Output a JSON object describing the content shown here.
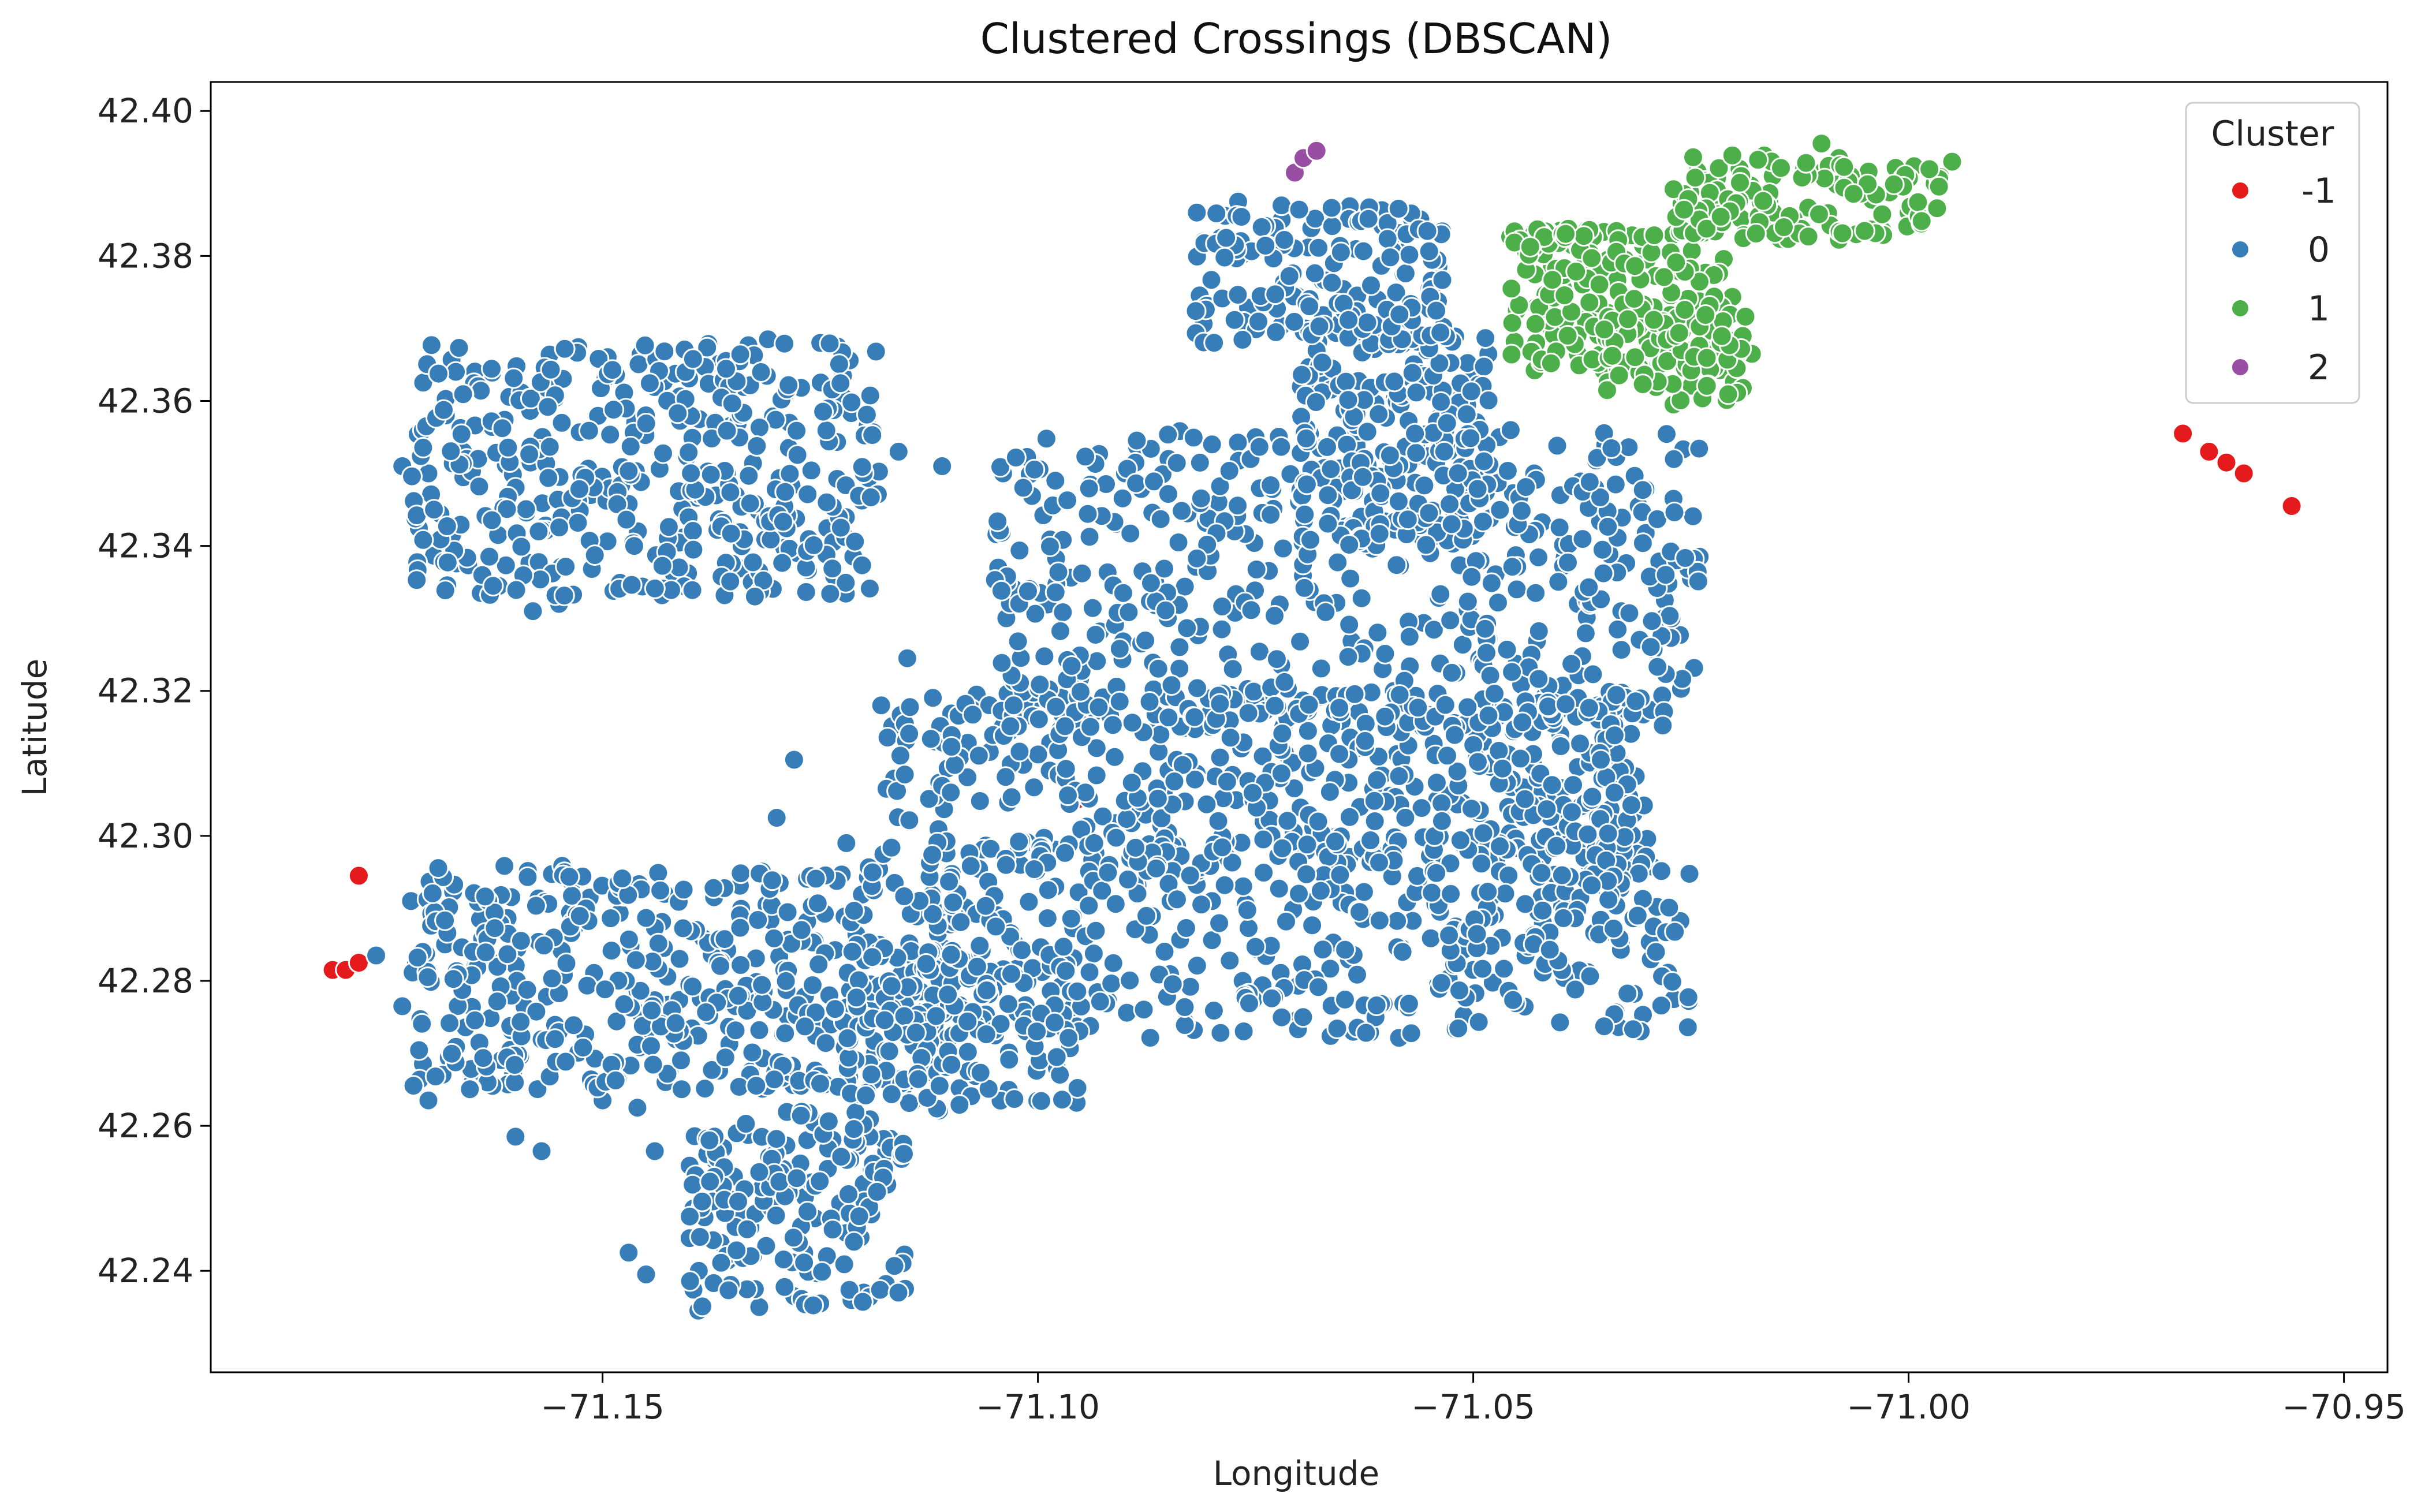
{
  "chart_data": {
    "type": "scatter",
    "title": "Clustered Crossings (DBSCAN)",
    "xlabel": "Longitude",
    "ylabel": "Latitude",
    "xlim": [
      -71.195,
      -70.945
    ],
    "ylim": [
      42.226,
      42.404
    ],
    "xticks": [
      {
        "value": -71.15,
        "label": "−71.15"
      },
      {
        "value": -71.1,
        "label": "−71.10"
      },
      {
        "value": -71.05,
        "label": "−71.05"
      },
      {
        "value": -71.0,
        "label": "−71.00"
      },
      {
        "value": -70.95,
        "label": "−70.95"
      }
    ],
    "yticks": [
      {
        "value": 42.24,
        "label": "42.24"
      },
      {
        "value": 42.26,
        "label": "42.26"
      },
      {
        "value": 42.28,
        "label": "42.28"
      },
      {
        "value": 42.3,
        "label": "42.30"
      },
      {
        "value": 42.32,
        "label": "42.32"
      },
      {
        "value": 42.34,
        "label": "42.34"
      },
      {
        "value": 42.36,
        "label": "42.36"
      },
      {
        "value": 42.38,
        "label": "42.38"
      },
      {
        "value": 42.4,
        "label": "42.40"
      }
    ],
    "grid": false,
    "legend": {
      "title": "Cluster",
      "position": "top-right"
    },
    "series": [
      {
        "name": "-1",
        "color": "#e41a1c",
        "points": [
          [
            -71.181,
            42.2815
          ],
          [
            -71.1795,
            42.2815
          ],
          [
            -71.178,
            42.2825
          ],
          [
            -71.178,
            42.2945
          ],
          [
            -71.0955,
            42.305
          ],
          [
            -70.9685,
            42.3555
          ],
          [
            -70.9655,
            42.353
          ],
          [
            -70.9635,
            42.3515
          ],
          [
            -70.9615,
            42.35
          ],
          [
            -70.956,
            42.3455
          ]
        ]
      },
      {
        "name": "0",
        "color": "#377eb8",
        "regions": [
          [
            -71.172,
            -71.118,
            42.333,
            42.368,
            420
          ],
          [
            -71.172,
            -71.108,
            42.265,
            42.296,
            480
          ],
          [
            -71.14,
            -71.115,
            42.235,
            42.262,
            170
          ],
          [
            -71.118,
            -71.03,
            42.296,
            42.32,
            420
          ],
          [
            -71.11,
            -71.025,
            42.272,
            42.3,
            380
          ],
          [
            -71.105,
            -71.024,
            42.315,
            42.356,
            480
          ],
          [
            -71.07,
            -71.048,
            42.34,
            42.37,
            220
          ],
          [
            -71.082,
            -71.053,
            42.368,
            42.387,
            160
          ],
          [
            -71.122,
            -71.095,
            42.262,
            42.285,
            150
          ],
          [
            -71.055,
            -71.033,
            42.284,
            42.32,
            120
          ]
        ],
        "points": [
          [
            -71.173,
            42.351
          ],
          [
            -71.17,
            42.35
          ],
          [
            -71.168,
            42.358
          ],
          [
            -71.166,
            42.353
          ],
          [
            -71.164,
            42.3335
          ],
          [
            -71.162,
            42.3415
          ],
          [
            -71.158,
            42.331
          ],
          [
            -71.155,
            42.332
          ],
          [
            -71.131,
            42.3685
          ],
          [
            -71.125,
            42.368
          ],
          [
            -71.123,
            42.3675
          ],
          [
            -71.116,
            42.353
          ],
          [
            -71.111,
            42.351
          ],
          [
            -71.104,
            42.35
          ],
          [
            -71.098,
            42.349
          ],
          [
            -71.09,
            42.35
          ],
          [
            -71.085,
            42.352
          ],
          [
            -71.08,
            42.354
          ],
          [
            -71.075,
            42.355
          ],
          [
            -71.139,
            42.2345
          ],
          [
            -71.132,
            42.235
          ],
          [
            -71.128,
            42.2365
          ],
          [
            -71.125,
            42.2355
          ],
          [
            -71.12,
            42.237
          ],
          [
            -71.145,
            42.2395
          ],
          [
            -71.147,
            42.2425
          ],
          [
            -71.14,
            42.2445
          ],
          [
            -71.121,
            42.2485
          ],
          [
            -71.12,
            42.252
          ],
          [
            -71.172,
            42.291
          ],
          [
            -71.176,
            42.2835
          ],
          [
            -71.173,
            42.2765
          ],
          [
            -71.17,
            42.2635
          ],
          [
            -71.165,
            42.2665
          ],
          [
            -71.16,
            42.2585
          ],
          [
            -71.157,
            42.2565
          ],
          [
            -71.15,
            42.2635
          ],
          [
            -71.146,
            42.2625
          ],
          [
            -71.144,
            42.2565
          ],
          [
            -71.14,
            42.2545
          ],
          [
            -71.137,
            42.2525
          ],
          [
            -71.115,
            42.3245
          ],
          [
            -71.112,
            42.319
          ],
          [
            -71.118,
            42.318
          ],
          [
            -71.128,
            42.3105
          ],
          [
            -71.13,
            42.3025
          ],
          [
            -71.122,
            42.299
          ],
          [
            -71.102,
            42.296
          ],
          [
            -71.098,
            42.293
          ],
          [
            -71.09,
            42.305
          ],
          [
            -71.085,
            42.309
          ],
          [
            -71.08,
            42.291
          ],
          [
            -71.063,
            42.304
          ],
          [
            -71.048,
            42.3095
          ],
          [
            -71.046,
            42.304
          ],
          [
            -71.04,
            42.314
          ],
          [
            -71.038,
            42.3095
          ],
          [
            -71.034,
            42.3135
          ],
          [
            -71.042,
            42.288
          ],
          [
            -71.041,
            42.292
          ],
          [
            -71.044,
            42.2835
          ],
          [
            -71.05,
            42.2815
          ],
          [
            -71.048,
            42.2915
          ],
          [
            -71.052,
            42.2875
          ],
          [
            -71.052,
            42.343
          ],
          [
            -71.049,
            42.349
          ],
          [
            -71.047,
            42.355
          ],
          [
            -71.043,
            42.35
          ],
          [
            -71.04,
            42.347
          ],
          [
            -71.036,
            42.348
          ],
          [
            -71.031,
            42.3455
          ],
          [
            -71.027,
            42.3465
          ],
          [
            -71.025,
            42.3355
          ],
          [
            -71.024,
            42.3385
          ],
          [
            -71.028,
            42.3325
          ],
          [
            -71.033,
            42.331
          ],
          [
            -71.038,
            42.332
          ],
          [
            -71.045,
            42.334
          ],
          [
            -71.079,
            42.3825
          ],
          [
            -71.081,
            42.382
          ],
          [
            -71.077,
            42.3875
          ],
          [
            -71.072,
            42.385
          ],
          [
            -71.066,
            42.379
          ],
          [
            -71.058,
            42.3775
          ],
          [
            -71.054,
            42.3785
          ],
          [
            -71.061,
            42.374
          ],
          [
            -71.065,
            42.3705
          ],
          [
            -71.068,
            42.3685
          ],
          [
            -71.057,
            42.3685
          ]
        ]
      },
      {
        "name": "1",
        "color": "#4daf4a",
        "regions": [
          [
            -71.046,
            -71.02,
            42.364,
            42.384,
            200
          ],
          [
            -71.027,
            -70.996,
            42.382,
            42.394,
            120
          ],
          [
            -71.035,
            -71.018,
            42.36,
            42.372,
            60
          ]
        ],
        "points": [
          [
            -71.04,
            42.3835
          ],
          [
            -71.045,
            42.3725
          ],
          [
            -71.043,
            42.3705
          ],
          [
            -71.038,
            42.3665
          ],
          [
            -71.027,
            42.3595
          ],
          [
            -71.026,
            42.3615
          ],
          [
            -71.02,
            42.3635
          ],
          [
            -71.018,
            42.3665
          ],
          [
            -71.01,
            42.3955
          ],
          [
            -71.008,
            42.3935
          ],
          [
            -71.012,
            42.392
          ],
          [
            -70.995,
            42.393
          ],
          [
            -70.997,
            42.39
          ],
          [
            -71.0,
            42.386
          ],
          [
            -71.003,
            42.3835
          ],
          [
            -71.006,
            42.383
          ]
        ]
      },
      {
        "name": "2",
        "color": "#984ea3",
        "points": [
          [
            -71.0705,
            42.3915
          ],
          [
            -71.0695,
            42.3935
          ],
          [
            -71.068,
            42.3945
          ]
        ]
      }
    ]
  }
}
